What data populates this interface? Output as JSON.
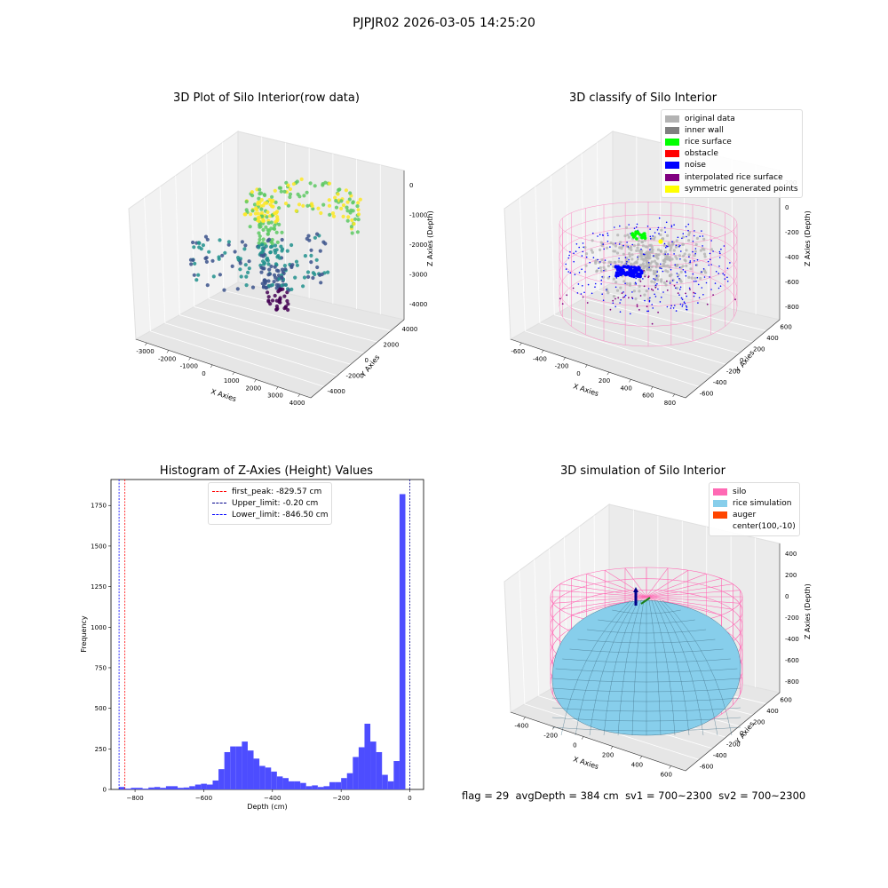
{
  "figure": {
    "suptitle": "PJPJR02 2026-03-05 14:25:20",
    "footer": {
      "flag": "flag = 29",
      "avg_depth": "avgDepth = 384 cm",
      "sv1": "sv1 = 700~2300",
      "sv2": "sv2 = 700~2300"
    }
  },
  "chart_data": [
    {
      "type": "scatter",
      "title": "3D Plot of Silo Interior(row data)",
      "xlabel": "X Axies",
      "ylabel": "Y Axies",
      "zlabel": "Z Axies (Depth)",
      "x_ticks": [
        "-3000",
        "-2000",
        "-1000",
        "0",
        "1000",
        "2000",
        "3000",
        "4000"
      ],
      "y_ticks": [
        "-4000",
        "-2000",
        "0",
        "2000",
        "4000"
      ],
      "z_ticks": [
        "-4000",
        "-3000",
        "-2000",
        "-1000",
        "0"
      ],
      "xlim": [
        -3500,
        4500
      ],
      "ylim": [
        -4500,
        4500
      ],
      "zlim": [
        -4500,
        0
      ],
      "colormap": "viridis",
      "colormap_colors": [
        "#440154",
        "#3b528b",
        "#21908d",
        "#5dc963",
        "#fde725"
      ]
    },
    {
      "type": "scatter",
      "title": "3D classify of Silo Interior",
      "xlabel": "X Axies",
      "ylabel": "Y Axies",
      "zlabel": "Z Axies (Depth)",
      "x_ticks": [
        "-600",
        "-400",
        "-200",
        "0",
        "200",
        "400",
        "600",
        "800"
      ],
      "y_ticks": [
        "-600",
        "-400",
        "-200",
        "0",
        "200",
        "400",
        "600"
      ],
      "z_ticks": [
        "-800",
        "-600",
        "-400",
        "-200",
        "0",
        "200"
      ],
      "legend": [
        {
          "label": "original data",
          "color": "#b3b3b3"
        },
        {
          "label": "inner wall",
          "color": "#808080"
        },
        {
          "label": "rice surface",
          "color": "#00ff00"
        },
        {
          "label": "obstacle",
          "color": "#ff0000"
        },
        {
          "label": "noise",
          "color": "#0000ff"
        },
        {
          "label": "interpolated rice surface",
          "color": "#800080"
        },
        {
          "label": "symmetric generated points",
          "color": "#ffff00"
        }
      ],
      "legend_loc": "upper right"
    },
    {
      "type": "bar",
      "title": "Histogram of Z-Axies (Height) Values",
      "xlabel": "Depth (cm)",
      "ylabel": "Frequency",
      "xlim": [
        -870,
        40
      ],
      "ylim": [
        0,
        1910
      ],
      "x_ticks": [
        -800,
        -600,
        -400,
        -200,
        0
      ],
      "y_ticks": [
        0,
        250,
        500,
        750,
        1000,
        1250,
        1500,
        1750
      ],
      "bin_width": 17,
      "x": [
        -846,
        -829,
        -812,
        -795,
        -778,
        -761,
        -744,
        -727,
        -710,
        -693,
        -676,
        -659,
        -642,
        -625,
        -608,
        -591,
        -574,
        -557,
        -540,
        -523,
        -506,
        -489,
        -472,
        -455,
        -438,
        -421,
        -404,
        -387,
        -370,
        -353,
        -336,
        -319,
        -302,
        -285,
        -268,
        -251,
        -234,
        -217,
        -200,
        -183,
        -166,
        -149,
        -132,
        -115,
        -98,
        -81,
        -64,
        -47,
        -30,
        -13
      ],
      "values": [
        15,
        5,
        10,
        10,
        5,
        12,
        15,
        10,
        20,
        20,
        10,
        12,
        20,
        30,
        35,
        30,
        55,
        125,
        230,
        265,
        265,
        295,
        240,
        190,
        145,
        135,
        110,
        80,
        70,
        50,
        50,
        40,
        20,
        25,
        15,
        20,
        45,
        45,
        70,
        100,
        200,
        260,
        405,
        295,
        230,
        90,
        50,
        175,
        1820,
        0
      ],
      "bar_color": "#4d4dff",
      "reference_lines": [
        {
          "label": "first_peak: -829.57 cm",
          "value": -829.57,
          "color": "#ff0000"
        },
        {
          "label": "Upper_limit: -0.20 cm",
          "value": -0.2,
          "color": "#00008b"
        },
        {
          "label": "Lower_limit: -846.50 cm",
          "value": -846.5,
          "color": "#0000ff"
        }
      ],
      "legend_loc": "upper center"
    },
    {
      "type": "area",
      "title": "3D simulation of Silo Interior",
      "xlabel": "X Axies",
      "ylabel": "Y Axies",
      "zlabel": "Z Axies (Depth)",
      "x_ticks": [
        "-400",
        "-200",
        "0",
        "200",
        "400",
        "600"
      ],
      "y_ticks": [
        "-600",
        "-400",
        "-200",
        "0",
        "200",
        "400",
        "600"
      ],
      "z_ticks": [
        "-800",
        "-600",
        "-400",
        "-200",
        "0",
        "200",
        "400"
      ],
      "legend": [
        {
          "label": "silo",
          "color": "#ff69b4"
        },
        {
          "label": "rice simulation",
          "color": "#87ceeb"
        },
        {
          "label": "auger",
          "color": "#ff4500"
        },
        {
          "label": "center(100,-10)",
          "color": "none"
        }
      ],
      "legend_loc": "upper right"
    }
  ]
}
